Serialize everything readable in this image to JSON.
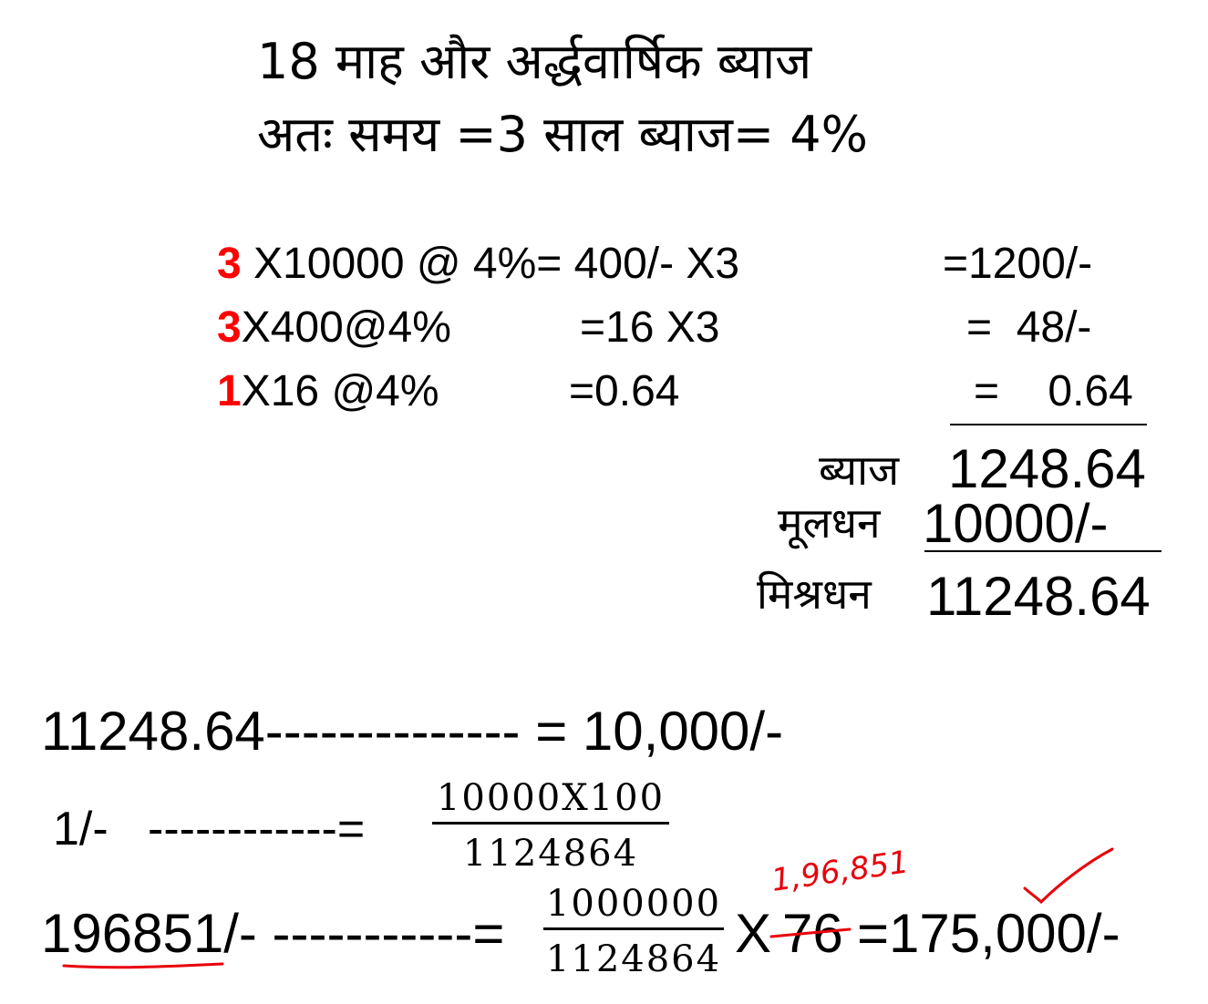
{
  "header": {
    "line1": "18 माह और अर्द्धवार्षिक ब्याज",
    "line2": "अतः समय =3 साल ब्याज= 4%"
  },
  "calc_rows": [
    {
      "times": "3",
      "expr": " X10000 @ 4%= 400/- X3",
      "result": "=1200/-"
    },
    {
      "times": "3",
      "expr": "X400@4%",
      "mid": "=16 X3",
      "result": "=  48/-"
    },
    {
      "times": "1",
      "expr": "X16 @4%",
      "mid": "=0.64",
      "result": "=    0.64"
    }
  ],
  "summary": {
    "interest_label": "ब्याज",
    "interest_value": "1248.64",
    "principal_label": "मूलधन",
    "principal_value": "10000/-",
    "amount_label": "मिश्रधन",
    "amount_value": "11248.64"
  },
  "proportion": {
    "line1": "11248.64-------------- = 10,000/-",
    "line2_left": "1/-   ------------=",
    "frac1_num": "10000X100",
    "frac1_den": "1124864",
    "line3_left": "196851/- -----------=",
    "frac2_num": "1000000",
    "frac2_den": "1124864",
    "times_label": "X",
    "struck_value": "76",
    "final": "=175,000/-"
  },
  "annotations": {
    "handwritten_value": "1,96,851",
    "ink_color": "#e8000b"
  }
}
